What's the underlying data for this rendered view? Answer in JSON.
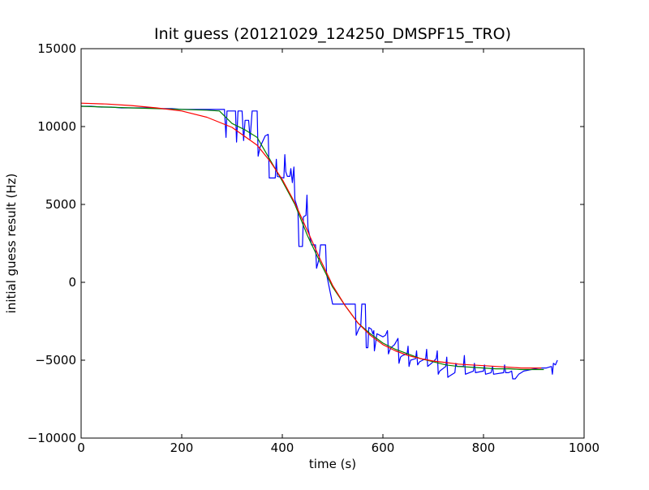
{
  "chart_data": {
    "type": "line",
    "title": "Init guess (20121029_124250_DMSPF15_TRO)",
    "xlabel": "time (s)",
    "ylabel": "initial guess result (Hz)",
    "xlim": [
      0,
      1000
    ],
    "ylim": [
      -10000,
      15000
    ],
    "xticks": [
      0,
      200,
      400,
      600,
      800,
      1000
    ],
    "yticks": [
      -10000,
      -5000,
      0,
      5000,
      10000,
      15000
    ],
    "xtick_labels": [
      "0",
      "200",
      "400",
      "600",
      "800",
      "1000"
    ],
    "ytick_labels": [
      "−10000",
      "−5000",
      "0",
      "5000",
      "10000",
      "15000"
    ],
    "grid": false,
    "legend": "none",
    "series": [
      {
        "color": "#0000ff",
        "points": [
          [
            0,
            11300
          ],
          [
            20,
            11300
          ],
          [
            40,
            11250
          ],
          [
            60,
            11250
          ],
          [
            80,
            11200
          ],
          [
            100,
            11200
          ],
          [
            120,
            11200
          ],
          [
            140,
            11200
          ],
          [
            160,
            11150
          ],
          [
            180,
            11150
          ],
          [
            200,
            11100
          ],
          [
            220,
            11100
          ],
          [
            240,
            11100
          ],
          [
            260,
            11100
          ],
          [
            275,
            11100
          ],
          [
            285,
            11100
          ],
          [
            288,
            9300
          ],
          [
            290,
            11000
          ],
          [
            307,
            11000
          ],
          [
            309,
            9000
          ],
          [
            312,
            11000
          ],
          [
            320,
            11000
          ],
          [
            323,
            9100
          ],
          [
            326,
            10400
          ],
          [
            333,
            10400
          ],
          [
            336,
            9200
          ],
          [
            340,
            11000
          ],
          [
            350,
            11000
          ],
          [
            352,
            8100
          ],
          [
            356,
            8700
          ],
          [
            366,
            9400
          ],
          [
            372,
            9500
          ],
          [
            374,
            6700
          ],
          [
            386,
            6700
          ],
          [
            388,
            7900
          ],
          [
            390,
            6800
          ],
          [
            403,
            6700
          ],
          [
            405,
            8200
          ],
          [
            407,
            7100
          ],
          [
            410,
            6800
          ],
          [
            415,
            6800
          ],
          [
            417,
            7300
          ],
          [
            420,
            6400
          ],
          [
            423,
            7400
          ],
          [
            425,
            5300
          ],
          [
            431,
            4700
          ],
          [
            433,
            2300
          ],
          [
            440,
            2300
          ],
          [
            442,
            4200
          ],
          [
            447,
            4300
          ],
          [
            449,
            5600
          ],
          [
            451,
            3500
          ],
          [
            458,
            2400
          ],
          [
            466,
            2400
          ],
          [
            468,
            900
          ],
          [
            473,
            1500
          ],
          [
            476,
            2400
          ],
          [
            486,
            2400
          ],
          [
            488,
            500
          ],
          [
            500,
            -1400
          ],
          [
            545,
            -1400
          ],
          [
            547,
            -3400
          ],
          [
            552,
            -3000
          ],
          [
            556,
            -2800
          ],
          [
            558,
            -1400
          ],
          [
            565,
            -1400
          ],
          [
            567,
            -4200
          ],
          [
            570,
            -4200
          ],
          [
            572,
            -2900
          ],
          [
            577,
            -3000
          ],
          [
            580,
            -3300
          ],
          [
            582,
            -3100
          ],
          [
            583,
            -4400
          ],
          [
            585,
            -4000
          ],
          [
            588,
            -3300
          ],
          [
            600,
            -3500
          ],
          [
            605,
            -3400
          ],
          [
            609,
            -3100
          ],
          [
            611,
            -4600
          ],
          [
            613,
            -4400
          ],
          [
            616,
            -4200
          ],
          [
            623,
            -4000
          ],
          [
            630,
            -3600
          ],
          [
            632,
            -5200
          ],
          [
            635,
            -4800
          ],
          [
            639,
            -4700
          ],
          [
            648,
            -4600
          ],
          [
            650,
            -4100
          ],
          [
            652,
            -5400
          ],
          [
            655,
            -5000
          ],
          [
            665,
            -4900
          ],
          [
            667,
            -4400
          ],
          [
            669,
            -5300
          ],
          [
            673,
            -5100
          ],
          [
            685,
            -4900
          ],
          [
            687,
            -4300
          ],
          [
            689,
            -5400
          ],
          [
            700,
            -5100
          ],
          [
            706,
            -4900
          ],
          [
            708,
            -4400
          ],
          [
            710,
            -5900
          ],
          [
            713,
            -5700
          ],
          [
            725,
            -5400
          ],
          [
            727,
            -4800
          ],
          [
            729,
            -6100
          ],
          [
            733,
            -6000
          ],
          [
            743,
            -5800
          ],
          [
            745,
            -5200
          ],
          [
            747,
            -5400
          ],
          [
            760,
            -5400
          ],
          [
            762,
            -4700
          ],
          [
            764,
            -5900
          ],
          [
            780,
            -5700
          ],
          [
            782,
            -5200
          ],
          [
            784,
            -5800
          ],
          [
            800,
            -5700
          ],
          [
            802,
            -5300
          ],
          [
            804,
            -5900
          ],
          [
            815,
            -5800
          ],
          [
            818,
            -5400
          ],
          [
            820,
            -5900
          ],
          [
            840,
            -5800
          ],
          [
            842,
            -5300
          ],
          [
            844,
            -5800
          ],
          [
            850,
            -5800
          ],
          [
            856,
            -5700
          ],
          [
            858,
            -6200
          ],
          [
            863,
            -6200
          ],
          [
            870,
            -5900
          ],
          [
            875,
            -5800
          ],
          [
            880,
            -5700
          ],
          [
            895,
            -5600
          ],
          [
            910,
            -5500
          ],
          [
            925,
            -5500
          ],
          [
            935,
            -5400
          ],
          [
            937,
            -5900
          ],
          [
            939,
            -5200
          ],
          [
            943,
            -5300
          ],
          [
            947,
            -5000
          ]
        ]
      },
      {
        "color": "#008000",
        "points": [
          [
            0,
            11300
          ],
          [
            50,
            11250
          ],
          [
            100,
            11200
          ],
          [
            150,
            11150
          ],
          [
            200,
            11100
          ],
          [
            250,
            11050
          ],
          [
            275,
            11000
          ],
          [
            300,
            10200
          ],
          [
            325,
            9800
          ],
          [
            350,
            9300
          ],
          [
            375,
            7900
          ],
          [
            400,
            6500
          ],
          [
            425,
            5000
          ],
          [
            450,
            3000
          ],
          [
            475,
            1300
          ],
          [
            500,
            -300
          ],
          [
            525,
            -1500
          ],
          [
            550,
            -2600
          ],
          [
            575,
            -3300
          ],
          [
            600,
            -3900
          ],
          [
            625,
            -4300
          ],
          [
            650,
            -4600
          ],
          [
            675,
            -4900
          ],
          [
            700,
            -5100
          ],
          [
            725,
            -5300
          ],
          [
            750,
            -5400
          ],
          [
            775,
            -5450
          ],
          [
            800,
            -5500
          ],
          [
            825,
            -5550
          ],
          [
            850,
            -5550
          ],
          [
            875,
            -5600
          ],
          [
            900,
            -5600
          ],
          [
            920,
            -5600
          ]
        ]
      },
      {
        "color": "#ff0000",
        "points": [
          [
            0,
            11500
          ],
          [
            50,
            11450
          ],
          [
            100,
            11350
          ],
          [
            150,
            11200
          ],
          [
            200,
            11000
          ],
          [
            250,
            10600
          ],
          [
            300,
            9950
          ],
          [
            350,
            8800
          ],
          [
            375,
            7800
          ],
          [
            400,
            6600
          ],
          [
            425,
            5100
          ],
          [
            450,
            3300
          ],
          [
            475,
            1500
          ],
          [
            500,
            -200
          ],
          [
            525,
            -1500
          ],
          [
            550,
            -2600
          ],
          [
            575,
            -3400
          ],
          [
            600,
            -4000
          ],
          [
            625,
            -4400
          ],
          [
            650,
            -4700
          ],
          [
            675,
            -4900
          ],
          [
            700,
            -5050
          ],
          [
            725,
            -5150
          ],
          [
            750,
            -5250
          ],
          [
            775,
            -5300
          ],
          [
            800,
            -5350
          ],
          [
            825,
            -5400
          ],
          [
            850,
            -5450
          ],
          [
            875,
            -5500
          ],
          [
            900,
            -5500
          ],
          [
            915,
            -5500
          ]
        ]
      }
    ]
  }
}
